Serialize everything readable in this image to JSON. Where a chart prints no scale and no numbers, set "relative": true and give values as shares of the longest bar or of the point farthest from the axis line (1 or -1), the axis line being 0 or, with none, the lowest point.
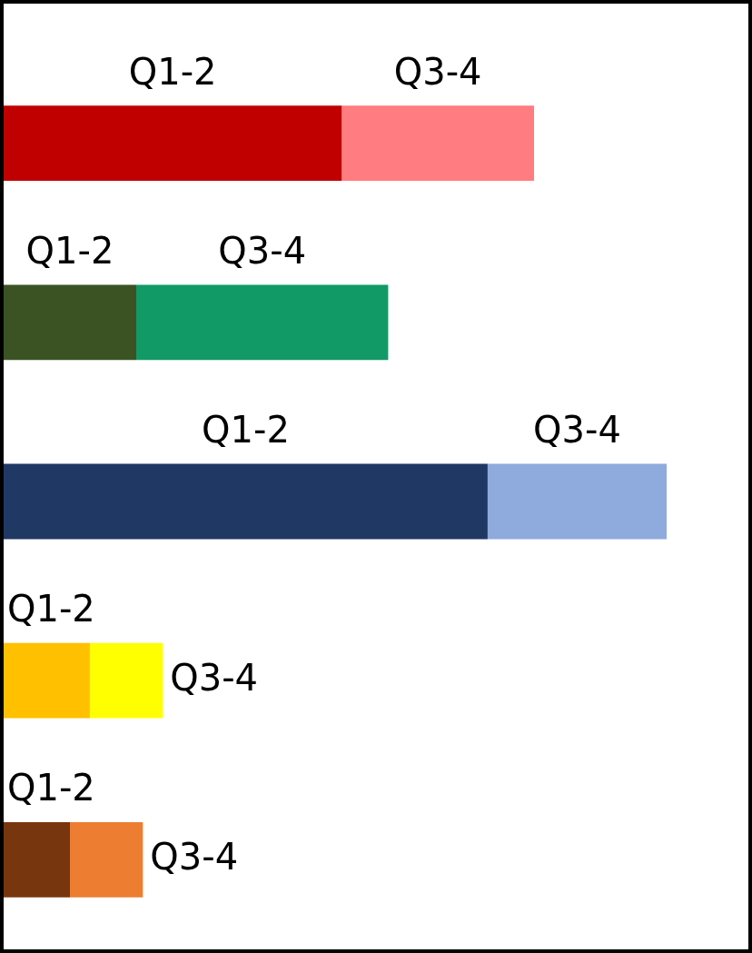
{
  "chart_data": {
    "type": "bar",
    "orientation": "horizontal",
    "stacked": true,
    "relative": true,
    "categories": [
      null,
      null,
      null,
      null,
      null
    ],
    "series": [
      {
        "name": "Q1-2",
        "colors": [
          "#c00000",
          "#3b5323",
          "#203864",
          "#ffc000",
          "#78360f"
        ],
        "values": [
          0.51,
          0.2,
          0.73,
          0.13,
          0.1
        ]
      },
      {
        "name": "Q3-4",
        "colors": [
          "#ff7c80",
          "#119966",
          "#8faadc",
          "#ffff00",
          "#ed7d31"
        ],
        "values": [
          0.29,
          0.38,
          0.27,
          0.11,
          0.11
        ]
      }
    ]
  }
}
